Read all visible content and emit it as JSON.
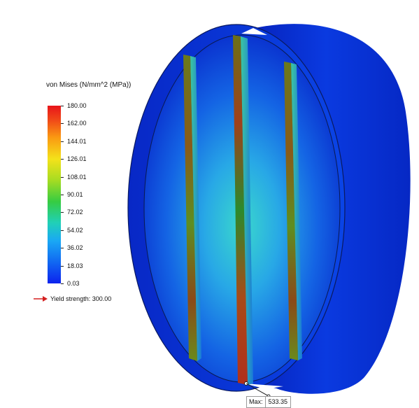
{
  "legend": {
    "title": "von Mises (N/mm^2 (MPa))",
    "ticks": [
      "180.00",
      "162.00",
      "144.01",
      "126.01",
      "108.01",
      "90.01",
      "72.02",
      "54.02",
      "36.02",
      "18.03",
      "0.03"
    ],
    "colors": [
      "#e8141a",
      "#f04818",
      "#fa9a12",
      "#f4e21a",
      "#a6dc22",
      "#36cc42",
      "#20d0b8",
      "#1aa8f4",
      "#1168f2",
      "#0c22ee"
    ]
  },
  "yield": {
    "label": "Yield strength: 300.00",
    "arrow_color": "#d42020"
  },
  "probe": {
    "max_label": "Max:",
    "max_value": "533.35"
  },
  "model": {
    "rim_color": "#0a2fd8",
    "face_color": "#1e7ee0",
    "face_center_color": "#38d4d0",
    "bar_color": "#7a6a20",
    "bar_hot_color": "#c0301a"
  }
}
